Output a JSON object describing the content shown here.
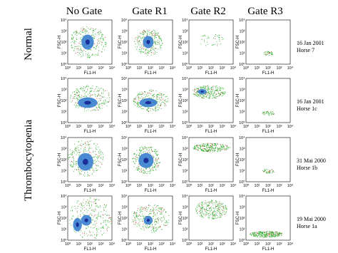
{
  "columns": [
    "No Gate",
    "Gate R1",
    "Gate R2",
    "Gate R3"
  ],
  "groups": [
    "Normal",
    "Thrombocytopenia"
  ],
  "axes": {
    "y_label": "FSC-H",
    "x_label": "FL1-H",
    "ticks": [
      "10⁰",
      "10¹",
      "10²",
      "10³",
      "10⁴"
    ]
  },
  "rows": [
    {
      "date": "16 Jan 2001",
      "horse": "Horse 7"
    },
    {
      "date": "16 Jan 2001",
      "horse": "Horse 1c"
    },
    {
      "date": "31 Mai 2000",
      "horse": "Horse 1b"
    },
    {
      "date": "19 Mai 2000",
      "horse": "Horse 1a"
    }
  ]
}
